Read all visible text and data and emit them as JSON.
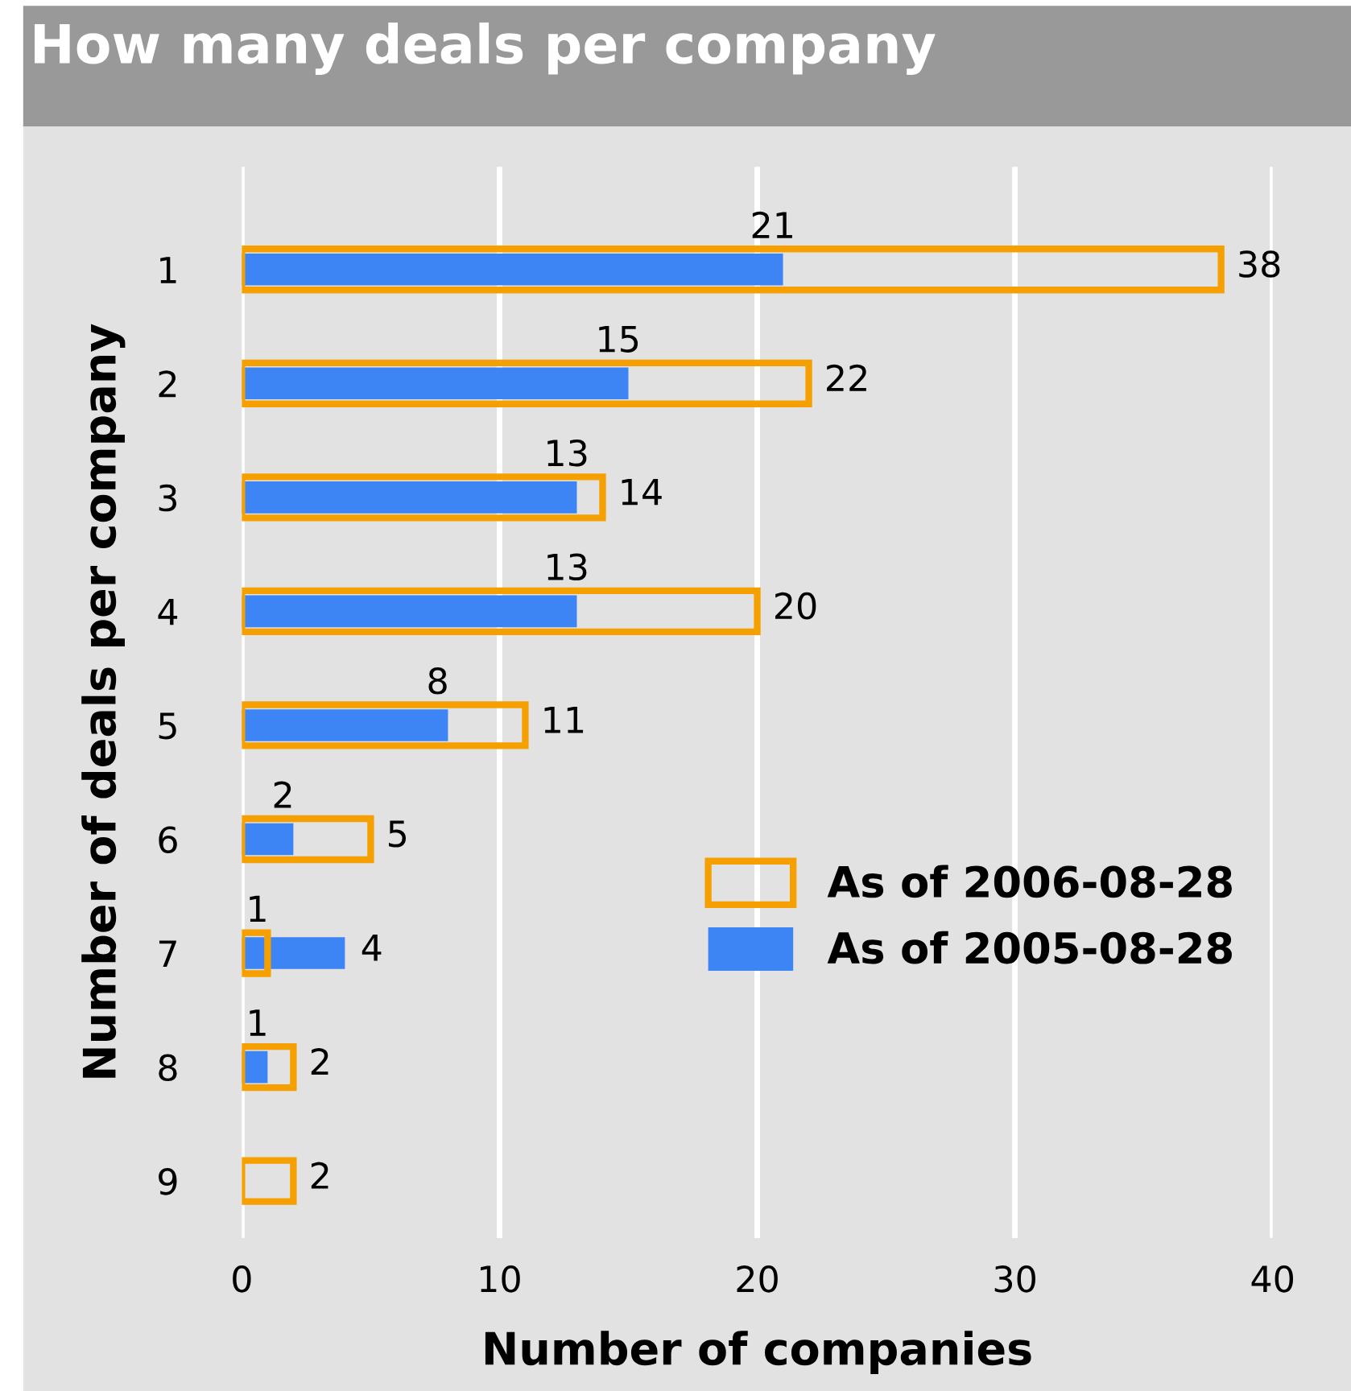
{
  "chart_data": {
    "type": "bar",
    "orientation": "horizontal",
    "title": "How many deals per company",
    "xlabel": "Number of companies",
    "ylabel": "Number of deals per company",
    "categories": [
      "1",
      "2",
      "3",
      "4",
      "5",
      "6",
      "7",
      "8",
      "9"
    ],
    "series": [
      {
        "name": "As of 2006-08-28",
        "color": "#f5a000",
        "values": [
          38,
          22,
          14,
          20,
          11,
          5,
          1,
          2,
          2
        ]
      },
      {
        "name": "As of 2005-08-28",
        "color": "#3d85f5",
        "values": [
          21,
          15,
          13,
          13,
          8,
          2,
          4,
          1,
          null
        ]
      }
    ],
    "xlim": [
      0,
      40
    ],
    "xticks": [
      0,
      10,
      20,
      30,
      40
    ],
    "grid": "x",
    "legend": "right",
    "data_labels": true
  }
}
